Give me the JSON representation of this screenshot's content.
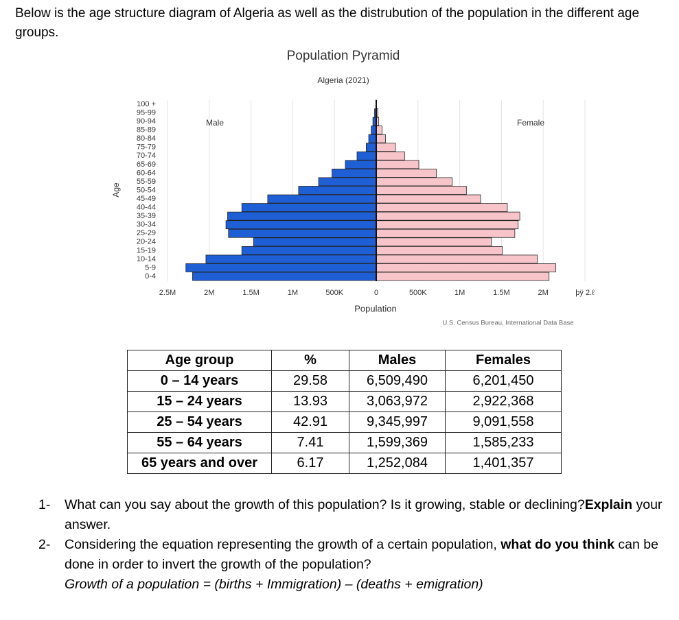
{
  "intro": "Below is the age structure diagram of Algeria as well as the distrubution of the population in the different age groups.",
  "chart_data": {
    "type": "pyramid",
    "title": "Population Pyramid",
    "subtitle": "Algeria (2021)",
    "y_label": "Age",
    "x_label": "Population",
    "source": "U.S. Census Bureau, International Data Base",
    "categories": [
      "0-4",
      "5-9",
      "10-14",
      "15-19",
      "20-24",
      "25-29",
      "30-34",
      "35-39",
      "40-44",
      "45-49",
      "50-54",
      "55-59",
      "60-64",
      "65-69",
      "70-74",
      "75-79",
      "80-84",
      "85-89",
      "90-94",
      "95-99",
      "100 +"
    ],
    "series": [
      {
        "name": "Male",
        "color": "#1f5fd6",
        "side": "left",
        "values": [
          2200000,
          2280000,
          2040000,
          1610000,
          1470000,
          1770000,
          1800000,
          1780000,
          1610000,
          1300000,
          930000,
          690000,
          530000,
          370000,
          230000,
          120000,
          90000,
          60000,
          40000,
          20000,
          5000
        ]
      },
      {
        "name": "Female",
        "color": "#f7c5c9",
        "side": "right",
        "values": [
          2070000,
          2150000,
          1930000,
          1510000,
          1380000,
          1660000,
          1700000,
          1720000,
          1570000,
          1250000,
          1080000,
          910000,
          720000,
          510000,
          340000,
          230000,
          110000,
          70000,
          30000,
          20000,
          3000
        ]
      }
    ],
    "xlim": [
      -2500000,
      2500000
    ],
    "xticks": [
      {
        "value": -2500000,
        "label": "2.5M"
      },
      {
        "value": -2000000,
        "label": "2M"
      },
      {
        "value": -1500000,
        "label": "1.5M"
      },
      {
        "value": -1000000,
        "label": "1M"
      },
      {
        "value": -500000,
        "label": "500K"
      },
      0,
      {
        "value": 500000,
        "label": "500K"
      },
      {
        "value": 1000000,
        "label": "1M"
      },
      {
        "value": 1500000,
        "label": "1.5M"
      },
      {
        "value": 2000000,
        "label": "2M"
      },
      {
        "value": 2500000,
        "label": "þÿ 2.ℓ"
      }
    ],
    "grid": true
  },
  "table": {
    "header": [
      "Age group",
      "%",
      "Males",
      "Females"
    ],
    "rows": [
      [
        "0 – 14 years",
        "29.58",
        "6,509,490",
        "6,201,450"
      ],
      [
        "15 – 24 years",
        "13.93",
        "3,063,972",
        "2,922,368"
      ],
      [
        "25 – 54 years",
        "42.91",
        "9,345,997",
        "9,091,558"
      ],
      [
        "55 – 64 years",
        "7.41",
        "1,599,369",
        "1,585,233"
      ],
      [
        "65 years and over",
        "6.17",
        "1,252,084",
        "1,401,357"
      ]
    ]
  },
  "questions": [
    {
      "number": "1-",
      "text": "What can you say about the growth of this population? Is it growing, stable or declining?",
      "bold": "Explain",
      "tail": " your answer."
    },
    {
      "number": "2-",
      "text": "Considering the equation representing the growth of a certain population, ",
      "bold": "what do you think",
      "tail": " can be done in order to invert the growth of the population?",
      "formula": "Growth of a population = (births + Immigration) – (deaths + emigration)"
    }
  ]
}
